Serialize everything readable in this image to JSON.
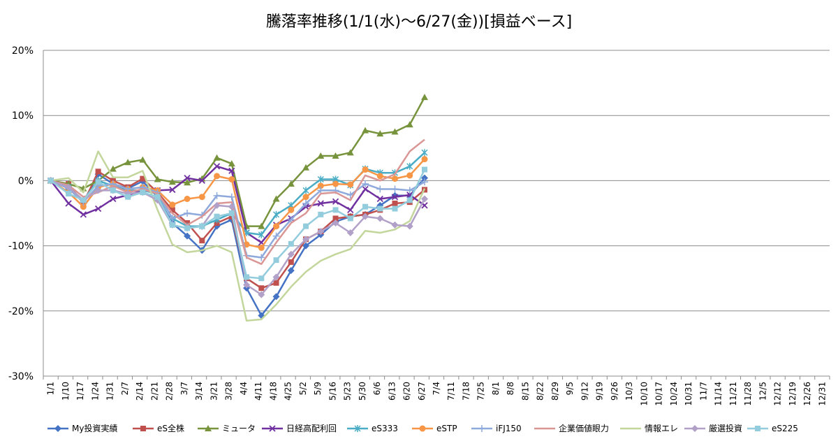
{
  "chart_data": {
    "type": "line",
    "title": "騰落率推移(1/1(水)～6/27(金))[損益ベース]",
    "xlabel": "",
    "ylabel": "",
    "ylim": [
      -30,
      20
    ],
    "yticks": [
      20,
      10,
      0,
      -10,
      -20,
      -30
    ],
    "ytick_labels": [
      "20%",
      "10%",
      "0%",
      "-10%",
      "-20%",
      "-30%"
    ],
    "grid": "horizontal-major",
    "legend_position": "bottom",
    "categories": [
      "1/1",
      "1/10",
      "1/17",
      "1/24",
      "1/31",
      "2/7",
      "2/14",
      "2/21",
      "2/28",
      "3/7",
      "3/14",
      "3/21",
      "3/28",
      "4/4",
      "4/11",
      "4/18",
      "4/25",
      "5/2",
      "5/9",
      "5/16",
      "5/23",
      "5/30",
      "6/6",
      "6/13",
      "6/20",
      "6/27",
      "7/4",
      "7/11",
      "7/18",
      "7/25",
      "8/1",
      "8/8",
      "8/15",
      "8/22",
      "8/29",
      "9/5",
      "9/12",
      "9/19",
      "9/26",
      "10/3",
      "10/10",
      "10/17",
      "10/24",
      "10/31",
      "11/7",
      "11/14",
      "11/21",
      "11/28",
      "12/5",
      "12/12",
      "12/19",
      "12/26",
      "12/31"
    ],
    "x": [
      0,
      1.2,
      2.2,
      3.2,
      4.2,
      5.2,
      6.2,
      7.2,
      8.2,
      9.2,
      10.2,
      11.2,
      12.2,
      13.2,
      14.2,
      15.2,
      16.2,
      17.2,
      18.2,
      19.2,
      20.2,
      21.2,
      22.2,
      23.2,
      24.2,
      25.2
    ],
    "series": [
      {
        "name": "My投資実績",
        "color": "#4472C4",
        "marker": "diamond",
        "values": [
          0,
          -1.2,
          -3.3,
          1.0,
          -0.5,
          -1.2,
          -0.1,
          -2.5,
          -6.5,
          -8.5,
          -10.7,
          -7.0,
          -6.0,
          -16.5,
          -20.7,
          -17.8,
          -13.8,
          -10.0,
          -8.3,
          -6.3,
          -5.5,
          -5.2,
          -3.8,
          -2.3,
          -2.3,
          0.4
        ]
      },
      {
        "name": "eS全株",
        "color": "#C0504D",
        "marker": "square",
        "values": [
          0,
          -0.5,
          -3.5,
          1.4,
          0.0,
          -1.0,
          0.3,
          -1.8,
          -4.5,
          -6.5,
          -9.2,
          -6.5,
          -5.5,
          -15.0,
          -16.5,
          -15.7,
          -12.5,
          -9.0,
          -7.8,
          -5.8,
          -5.5,
          -5.2,
          -4.5,
          -3.5,
          -3.3,
          -1.4
        ]
      },
      {
        "name": "ミュータ",
        "color": "#77933C",
        "marker": "triangle",
        "values": [
          0,
          -0.5,
          -1.2,
          0.0,
          1.8,
          2.8,
          3.2,
          0.2,
          -0.2,
          -0.3,
          0.3,
          3.5,
          2.6,
          -7.0,
          -7.0,
          -2.8,
          -0.5,
          2.0,
          3.8,
          3.8,
          4.3,
          7.7,
          7.2,
          7.5,
          8.6,
          12.8
        ]
      },
      {
        "name": "日経高配利回",
        "color": "#7030A0",
        "marker": "x",
        "values": [
          0,
          -3.5,
          -5.2,
          -4.3,
          -2.8,
          -2.2,
          -1.5,
          -1.5,
          -1.4,
          0.4,
          0.0,
          2.2,
          1.5,
          -8.0,
          -9.5,
          -6.8,
          -5.8,
          -4.0,
          -3.5,
          -3.2,
          -4.5,
          -1.3,
          -2.8,
          -2.5,
          -2.2,
          -3.8
        ]
      },
      {
        "name": "eS333",
        "color": "#4BACC6",
        "marker": "asterisk",
        "values": [
          0,
          -1.0,
          -3.0,
          0.0,
          -0.8,
          -1.5,
          -1.5,
          -2.0,
          -5.8,
          -7.0,
          -7.0,
          -6.0,
          -5.0,
          -8.0,
          -8.3,
          -5.2,
          -3.8,
          -1.5,
          0.2,
          0.2,
          -0.7,
          1.8,
          1.2,
          1.2,
          2.2,
          4.3
        ]
      },
      {
        "name": "eSTP",
        "color": "#F79646",
        "marker": "circle",
        "values": [
          0,
          -1.8,
          -4.0,
          -1.0,
          -0.5,
          -1.3,
          -1.0,
          -1.5,
          -3.7,
          -2.8,
          -2.5,
          0.7,
          0.2,
          -9.8,
          -10.3,
          -7.0,
          -4.5,
          -2.5,
          -0.8,
          -0.5,
          -0.6,
          1.7,
          0.7,
          0.3,
          0.8,
          3.3
        ]
      },
      {
        "name": "iFJ150",
        "color": "#8EA9DB",
        "marker": "plus",
        "values": [
          0,
          -1.2,
          -3.3,
          -0.8,
          -0.5,
          -1.3,
          -1.0,
          -1.8,
          -5.8,
          -5.0,
          -5.3,
          -2.3,
          -2.5,
          -11.5,
          -11.8,
          -8.5,
          -6.0,
          -3.5,
          -1.5,
          -1.5,
          -2.2,
          -0.5,
          -1.3,
          -1.3,
          -1.5,
          -0.2
        ]
      },
      {
        "name": "企業価値眼力",
        "color": "#DA9694",
        "marker": "none",
        "values": [
          0,
          -0.7,
          -2.5,
          -1.8,
          -0.8,
          -1.8,
          -1.3,
          -2.0,
          -5.0,
          -6.8,
          -5.5,
          -3.5,
          -3.3,
          -11.8,
          -12.8,
          -9.5,
          -6.5,
          -5.0,
          -2.0,
          -1.8,
          -3.0,
          0.8,
          0.0,
          1.0,
          4.5,
          6.3
        ]
      },
      {
        "name": "情報エレ",
        "color": "#C3D69B",
        "marker": "none",
        "values": [
          0,
          0.4,
          -1.8,
          4.5,
          0.5,
          0.5,
          1.5,
          -4.5,
          -9.8,
          -11.0,
          -10.7,
          -10.0,
          -11.0,
          -21.5,
          -21.3,
          -19.0,
          -16.3,
          -14.0,
          -12.3,
          -11.3,
          -10.5,
          -7.7,
          -8.0,
          -7.5,
          -6.2,
          -1.2
        ]
      },
      {
        "name": "厳選投資",
        "color": "#B1A0C7",
        "marker": "diamond",
        "values": [
          0,
          -1.0,
          -3.0,
          -1.5,
          -1.5,
          -2.0,
          -1.8,
          -3.0,
          -6.8,
          -7.3,
          -7.0,
          -3.8,
          -4.0,
          -16.0,
          -17.5,
          -14.8,
          -11.3,
          -9.0,
          -7.8,
          -6.5,
          -8.0,
          -5.5,
          -5.8,
          -6.8,
          -7.0,
          -2.8
        ]
      },
      {
        "name": "eS225",
        "color": "#93CDDD",
        "marker": "square",
        "values": [
          0,
          -2.0,
          -3.0,
          -0.2,
          -1.5,
          -2.5,
          -1.8,
          -2.5,
          -6.8,
          -7.3,
          -7.0,
          -5.5,
          -5.0,
          -14.8,
          -15.0,
          -12.2,
          -9.7,
          -7.0,
          -5.2,
          -4.5,
          -5.8,
          -4.0,
          -4.3,
          -4.3,
          -3.0,
          1.7
        ]
      }
    ]
  }
}
